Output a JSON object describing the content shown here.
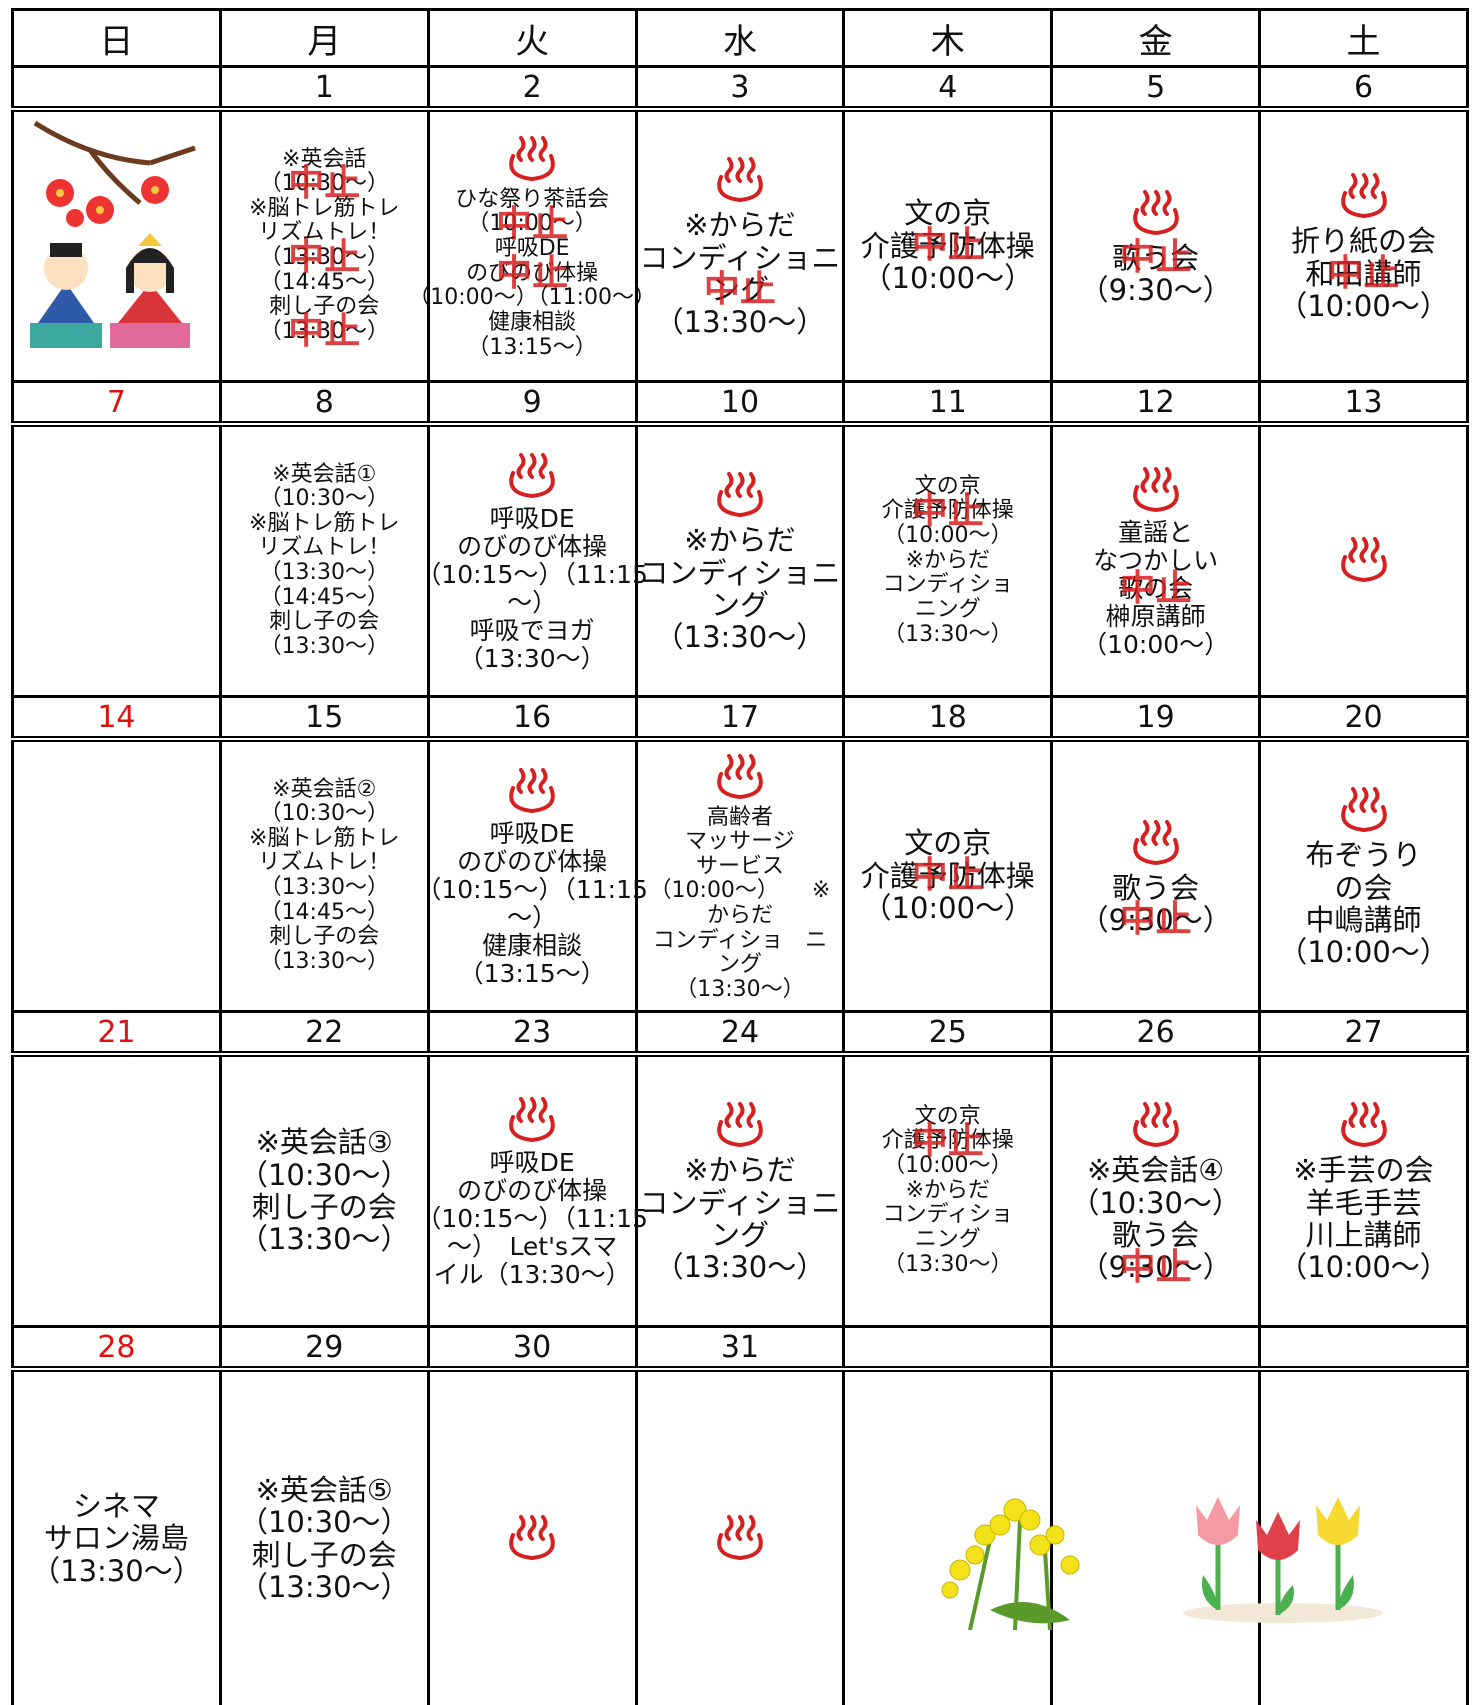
{
  "cancel_stamp": "中止",
  "weekdays": [
    "日",
    "月",
    "火",
    "水",
    "木",
    "金",
    "土"
  ],
  "weeks": [
    {
      "dates": [
        null,
        1,
        2,
        3,
        4,
        5,
        6
      ],
      "cells": [
        {},
        {
          "lines": [
            "※英会話",
            "（10:30～）",
            "※脳トレ筋トレ",
            "リズムトレ！",
            "（13:30～）",
            "（14:45～）",
            "刺し子の会",
            "（13:30～）"
          ],
          "stamps": [
            1,
            4,
            7
          ]
        },
        {
          "onsen": true,
          "lines": [
            "ひな祭り茶話会",
            "（10:00～）",
            "呼吸DE",
            "のびのび体操",
            "（10:00～）（11:00～）",
            "健康相談",
            "（13:15～）"
          ],
          "stamps": [
            1,
            3
          ]
        },
        {
          "onsen": true,
          "lines": [
            "※からだ",
            "コンディショニ",
            "ング",
            "（13:30～）"
          ],
          "stamps": [
            2
          ]
        },
        {
          "lines": [
            "文の京",
            "介護予防体操",
            "（10:00～）"
          ],
          "stamps": [
            1
          ]
        },
        {
          "onsen": true,
          "lines": [
            "歌う会",
            "（9:30～）"
          ],
          "stamps": [
            0
          ]
        },
        {
          "onsen": true,
          "lines": [
            "折り紙の会",
            "和田講師",
            "（10:00～）"
          ],
          "stamps": [
            1
          ]
        }
      ]
    },
    {
      "dates": [
        7,
        8,
        9,
        10,
        11,
        12,
        13
      ],
      "cells": [
        {},
        {
          "lines": [
            "※英会話①",
            "（10:30～）",
            "※脳トレ筋トレ",
            "リズムトレ！",
            "（13:30～）",
            "（14:45～）",
            "刺し子の会",
            "（13:30～）"
          ]
        },
        {
          "onsen": true,
          "lines": [
            "呼吸DE",
            "のびのび体操",
            "（10:15～）（11:15",
            "～）",
            "呼吸でヨガ",
            "（13:30～）"
          ]
        },
        {
          "onsen": true,
          "lines": [
            "※からだ",
            "コンディショニ",
            "ング",
            "（13:30～）"
          ]
        },
        {
          "lines": [
            "文の京",
            "介護予防体操",
            "（10:00～）",
            "※からだ",
            "コンディショ",
            "ニング",
            "（13:30～）"
          ],
          "stamps": [
            1
          ]
        },
        {
          "onsen": true,
          "lines": [
            "童謡と",
            "なつかしい",
            "歌の会",
            "榊原講師",
            "（10:00～）"
          ],
          "stamps": [
            2
          ]
        },
        {
          "onsen": true,
          "lines": []
        }
      ]
    },
    {
      "dates": [
        14,
        15,
        16,
        17,
        18,
        19,
        20
      ],
      "cells": [
        {},
        {
          "lines": [
            "※英会話②",
            "（10:30～）",
            "※脳トレ筋トレ",
            "リズムトレ！",
            "（13:30～）",
            "（14:45～）",
            "刺し子の会",
            "（13:30～）"
          ]
        },
        {
          "onsen": true,
          "lines": [
            "呼吸DE",
            "のびのび体操",
            "（10:15～）（11:15",
            "～）",
            "健康相談",
            "（13:15～）"
          ]
        },
        {
          "onsen": true,
          "lines": [
            "高齢者",
            "マッサージ",
            "サービス",
            "（10:00～）　　※",
            "からだ",
            "コンディショ　ニ",
            "ング",
            "（13:30～）"
          ]
        },
        {
          "lines": [
            "文の京",
            "介護予防体操",
            "（10:00～）"
          ],
          "stamps": [
            1
          ]
        },
        {
          "onsen": true,
          "lines": [
            "歌う会",
            "（9:30～）"
          ],
          "stamps": [
            1
          ]
        },
        {
          "onsen": true,
          "lines": [
            "布ぞうり",
            "の会",
            "中嶋講師",
            "（10:00～）"
          ]
        }
      ]
    },
    {
      "dates": [
        21,
        22,
        23,
        24,
        25,
        26,
        27
      ],
      "cells": [
        {},
        {
          "lines": [
            "※英会話③",
            "（10:30～）",
            "刺し子の会",
            "（13:30～）"
          ]
        },
        {
          "onsen": true,
          "lines": [
            "呼吸DE",
            "のびのび体操",
            "（10:15～）（11:15",
            "～）　Let'sスマ",
            "イル（13:30～）"
          ]
        },
        {
          "onsen": true,
          "lines": [
            "※からだ",
            "コンディショニ",
            "ング",
            "（13:30～）"
          ]
        },
        {
          "lines": [
            "文の京",
            "介護予防体操",
            "（10:00～）",
            "※からだ",
            "コンディショ",
            "ニング",
            "（13:30～）"
          ],
          "stamps": [
            1
          ]
        },
        {
          "onsen": true,
          "lines": [
            "※英会話④",
            "（10:30～）",
            "歌う会",
            "（9:30～）"
          ],
          "stamps": [
            3
          ]
        },
        {
          "onsen": true,
          "lines": [
            "※手芸の会",
            "羊毛手芸",
            "川上講師",
            "（10:00～）"
          ]
        }
      ]
    },
    {
      "dates": [
        28,
        29,
        30,
        31,
        null,
        null,
        null
      ],
      "cells": [
        {
          "lines": [
            "シネマ",
            "サロン湯島",
            "（13:30～）"
          ]
        },
        {
          "lines": [
            "※英会話⑤",
            "（10:30～）",
            "刺し子の会",
            "（13:30～）"
          ]
        },
        {
          "onsen": true,
          "lines": []
        },
        {
          "onsen": true,
          "lines": []
        },
        {},
        {},
        {}
      ]
    }
  ]
}
